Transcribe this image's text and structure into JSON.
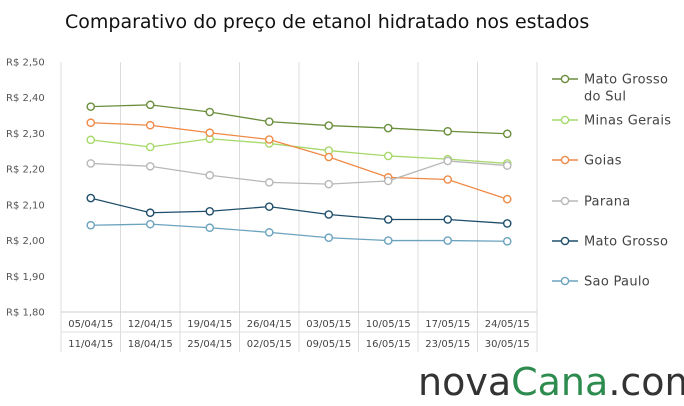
{
  "chart_data": {
    "type": "line",
    "title": "Comparativo do preço de etanol hidratado nos estados",
    "y_ticks": [
      "R$ 2,50",
      "R$ 2,40",
      "R$ 2,30",
      "R$ 2,20",
      "R$ 2,10",
      "R$ 2,00",
      "R$ 1,90",
      "R$ 1,80"
    ],
    "ylim": [
      1.8,
      2.5
    ],
    "categories_line1": [
      "05/04/15",
      "12/04/15",
      "19/04/15",
      "26/04/15",
      "03/05/15",
      "10/05/15",
      "17/05/15",
      "24/05/15"
    ],
    "categories_line2": [
      "11/04/15",
      "18/04/15",
      "25/04/15",
      "02/05/15",
      "09/05/15",
      "16/05/15",
      "23/05/15",
      "30/05/15"
    ],
    "grid": "vertical",
    "legend_position": "right",
    "series": [
      {
        "name": "Mato Grosso do Sul",
        "legend_lines": [
          "Mato Grosso",
          "do Sul"
        ],
        "color": "#6a8e3c",
        "values": [
          2.375,
          2.38,
          2.36,
          2.333,
          2.322,
          2.315,
          2.306,
          2.299
        ]
      },
      {
        "name": "Minas Gerais",
        "legend_lines": [
          "Minas Gerais"
        ],
        "color": "#a6d96a",
        "values": [
          2.282,
          2.262,
          2.285,
          2.272,
          2.252,
          2.237,
          2.228,
          2.216
        ]
      },
      {
        "name": "Goias",
        "legend_lines": [
          "Goias"
        ],
        "color": "#ef8a47",
        "values": [
          2.33,
          2.323,
          2.302,
          2.283,
          2.234,
          2.177,
          2.171,
          2.116
        ]
      },
      {
        "name": "Parana",
        "legend_lines": [
          "Parana"
        ],
        "color": "#b8b8b8",
        "values": [
          2.216,
          2.208,
          2.183,
          2.163,
          2.158,
          2.167,
          2.223,
          2.21
        ]
      },
      {
        "name": "Mato Grosso",
        "legend_lines": [
          "Mato Grosso"
        ],
        "color": "#1f4e6b",
        "values": [
          2.119,
          2.078,
          2.082,
          2.095,
          2.073,
          2.059,
          2.059,
          2.048
        ]
      },
      {
        "name": "Sao Paulo",
        "legend_lines": [
          "Sao Paulo"
        ],
        "color": "#6ba3bf",
        "values": [
          2.043,
          2.046,
          2.036,
          2.023,
          2.008,
          2.0,
          2.0,
          1.998
        ]
      }
    ]
  },
  "brand": {
    "part1": "nova",
    "part2": "Cana",
    "part3": ".com"
  }
}
